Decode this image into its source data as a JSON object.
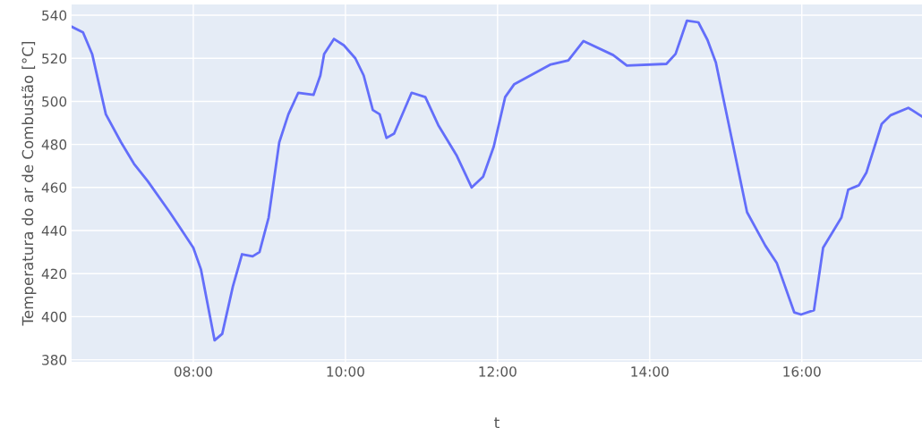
{
  "chart_data": {
    "type": "line",
    "xlabel": "t",
    "ylabel": "Temperatura do ar de Combustão [°C]",
    "xlim": [
      6.4,
      17.58
    ],
    "xticks": [
      {
        "value": 8,
        "label": "08:00"
      },
      {
        "value": 10,
        "label": "10:00"
      },
      {
        "value": 12,
        "label": "12:00"
      },
      {
        "value": 14,
        "label": "14:00"
      },
      {
        "value": 16,
        "label": "16:00"
      }
    ],
    "ylim": [
      379,
      545
    ],
    "yticks": [
      380,
      400,
      420,
      440,
      460,
      480,
      500,
      520,
      540
    ],
    "grid": true,
    "series": [
      {
        "color": "#636efa",
        "x": [
          6.4,
          6.55,
          6.67,
          6.85,
          7.05,
          7.22,
          7.4,
          7.69,
          7.87,
          8.0,
          8.1,
          8.28,
          8.38,
          8.52,
          8.64,
          8.78,
          8.87,
          8.99,
          9.13,
          9.25,
          9.38,
          9.58,
          9.67,
          9.72,
          9.85,
          9.98,
          10.13,
          10.24,
          10.36,
          10.45,
          10.54,
          10.64,
          10.87,
          11.05,
          11.22,
          11.46,
          11.66,
          11.81,
          11.95,
          12.1,
          12.22,
          12.69,
          12.93,
          13.13,
          13.52,
          13.7,
          14.22,
          14.34,
          14.49,
          14.64,
          14.76,
          14.87,
          15.28,
          15.52,
          15.67,
          15.9,
          15.99,
          16.16,
          16.28,
          16.52,
          16.61,
          16.75,
          16.85,
          17.05,
          17.17,
          17.4,
          17.58
        ],
        "values": [
          534.7,
          532,
          522,
          494,
          481,
          471,
          463,
          448.5,
          439,
          432,
          422,
          389,
          392,
          414,
          429,
          428,
          430,
          446,
          481,
          494,
          504,
          503,
          512,
          522,
          529,
          526,
          520,
          512,
          496,
          494,
          483,
          485,
          504,
          502,
          489,
          475,
          460,
          465,
          479,
          502,
          508,
          517,
          519,
          528,
          521.5,
          516.6,
          517.4,
          522,
          537.5,
          536.7,
          528.5,
          518,
          448.5,
          433,
          425,
          402,
          401,
          403,
          432,
          446,
          459,
          461,
          467,
          489.5,
          493.6,
          497,
          493
        ]
      }
    ]
  }
}
